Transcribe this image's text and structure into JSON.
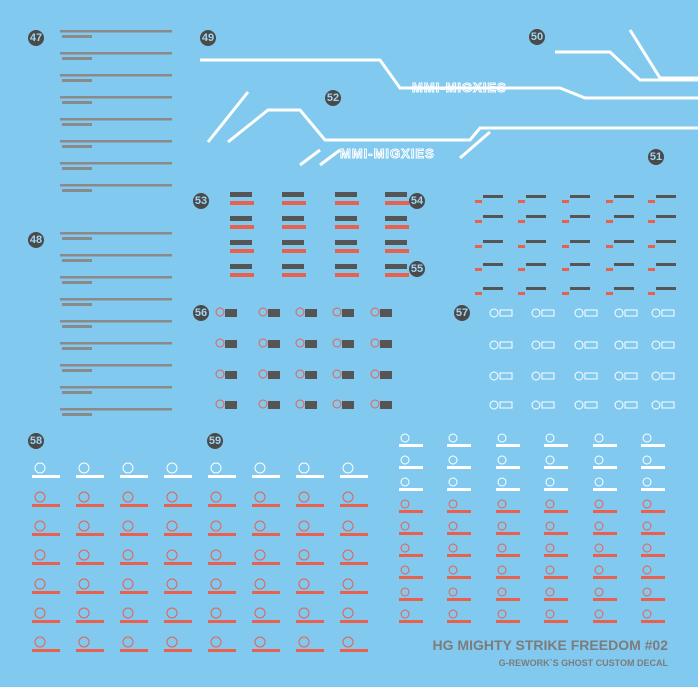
{
  "labels": [
    "47",
    "48",
    "49",
    "50",
    "51",
    "52",
    "53",
    "54",
    "55",
    "56",
    "57",
    "58",
    "59"
  ],
  "logos": [
    "MMI-MIGXIES",
    "MMI-MIGXIES"
  ],
  "footer": {
    "title": "HG MIGHTY STRIKE FREEDOM #02",
    "subtitle": "G-REWORK`S GHOST CUSTOM DECAL"
  }
}
